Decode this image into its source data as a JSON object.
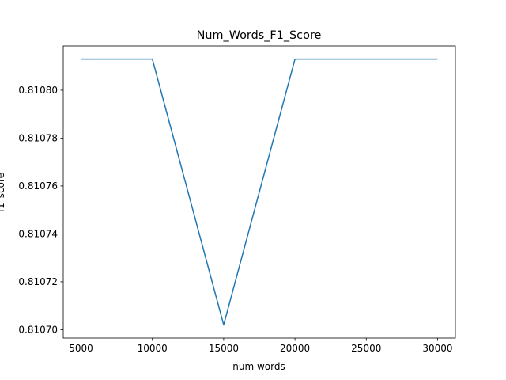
{
  "chart_data": {
    "type": "line",
    "title": "Num_Words_F1_Score",
    "xlabel": "num words",
    "ylabel": "f1_score",
    "x": [
      5000,
      10000,
      15000,
      20000,
      30000
    ],
    "series": [
      {
        "values": [
          0.810813,
          0.810813,
          0.810702,
          0.810813,
          0.810813
        ],
        "color": "#1f77b4"
      }
    ],
    "xlim": [
      3750,
      31250
    ],
    "ylim": [
      0.8106965,
      0.8108185
    ],
    "xticks": [
      5000,
      10000,
      15000,
      20000,
      25000,
      30000
    ],
    "xtick_labels": [
      "5000",
      "10000",
      "15000",
      "20000",
      "25000",
      "30000"
    ],
    "yticks": [
      0.8107,
      0.81072,
      0.81074,
      0.81076,
      0.81078,
      0.8108
    ],
    "ytick_labels": [
      "0.81070",
      "0.81072",
      "0.81074",
      "0.81076",
      "0.81078",
      "0.81080"
    ],
    "grid": false,
    "legend": "none"
  }
}
